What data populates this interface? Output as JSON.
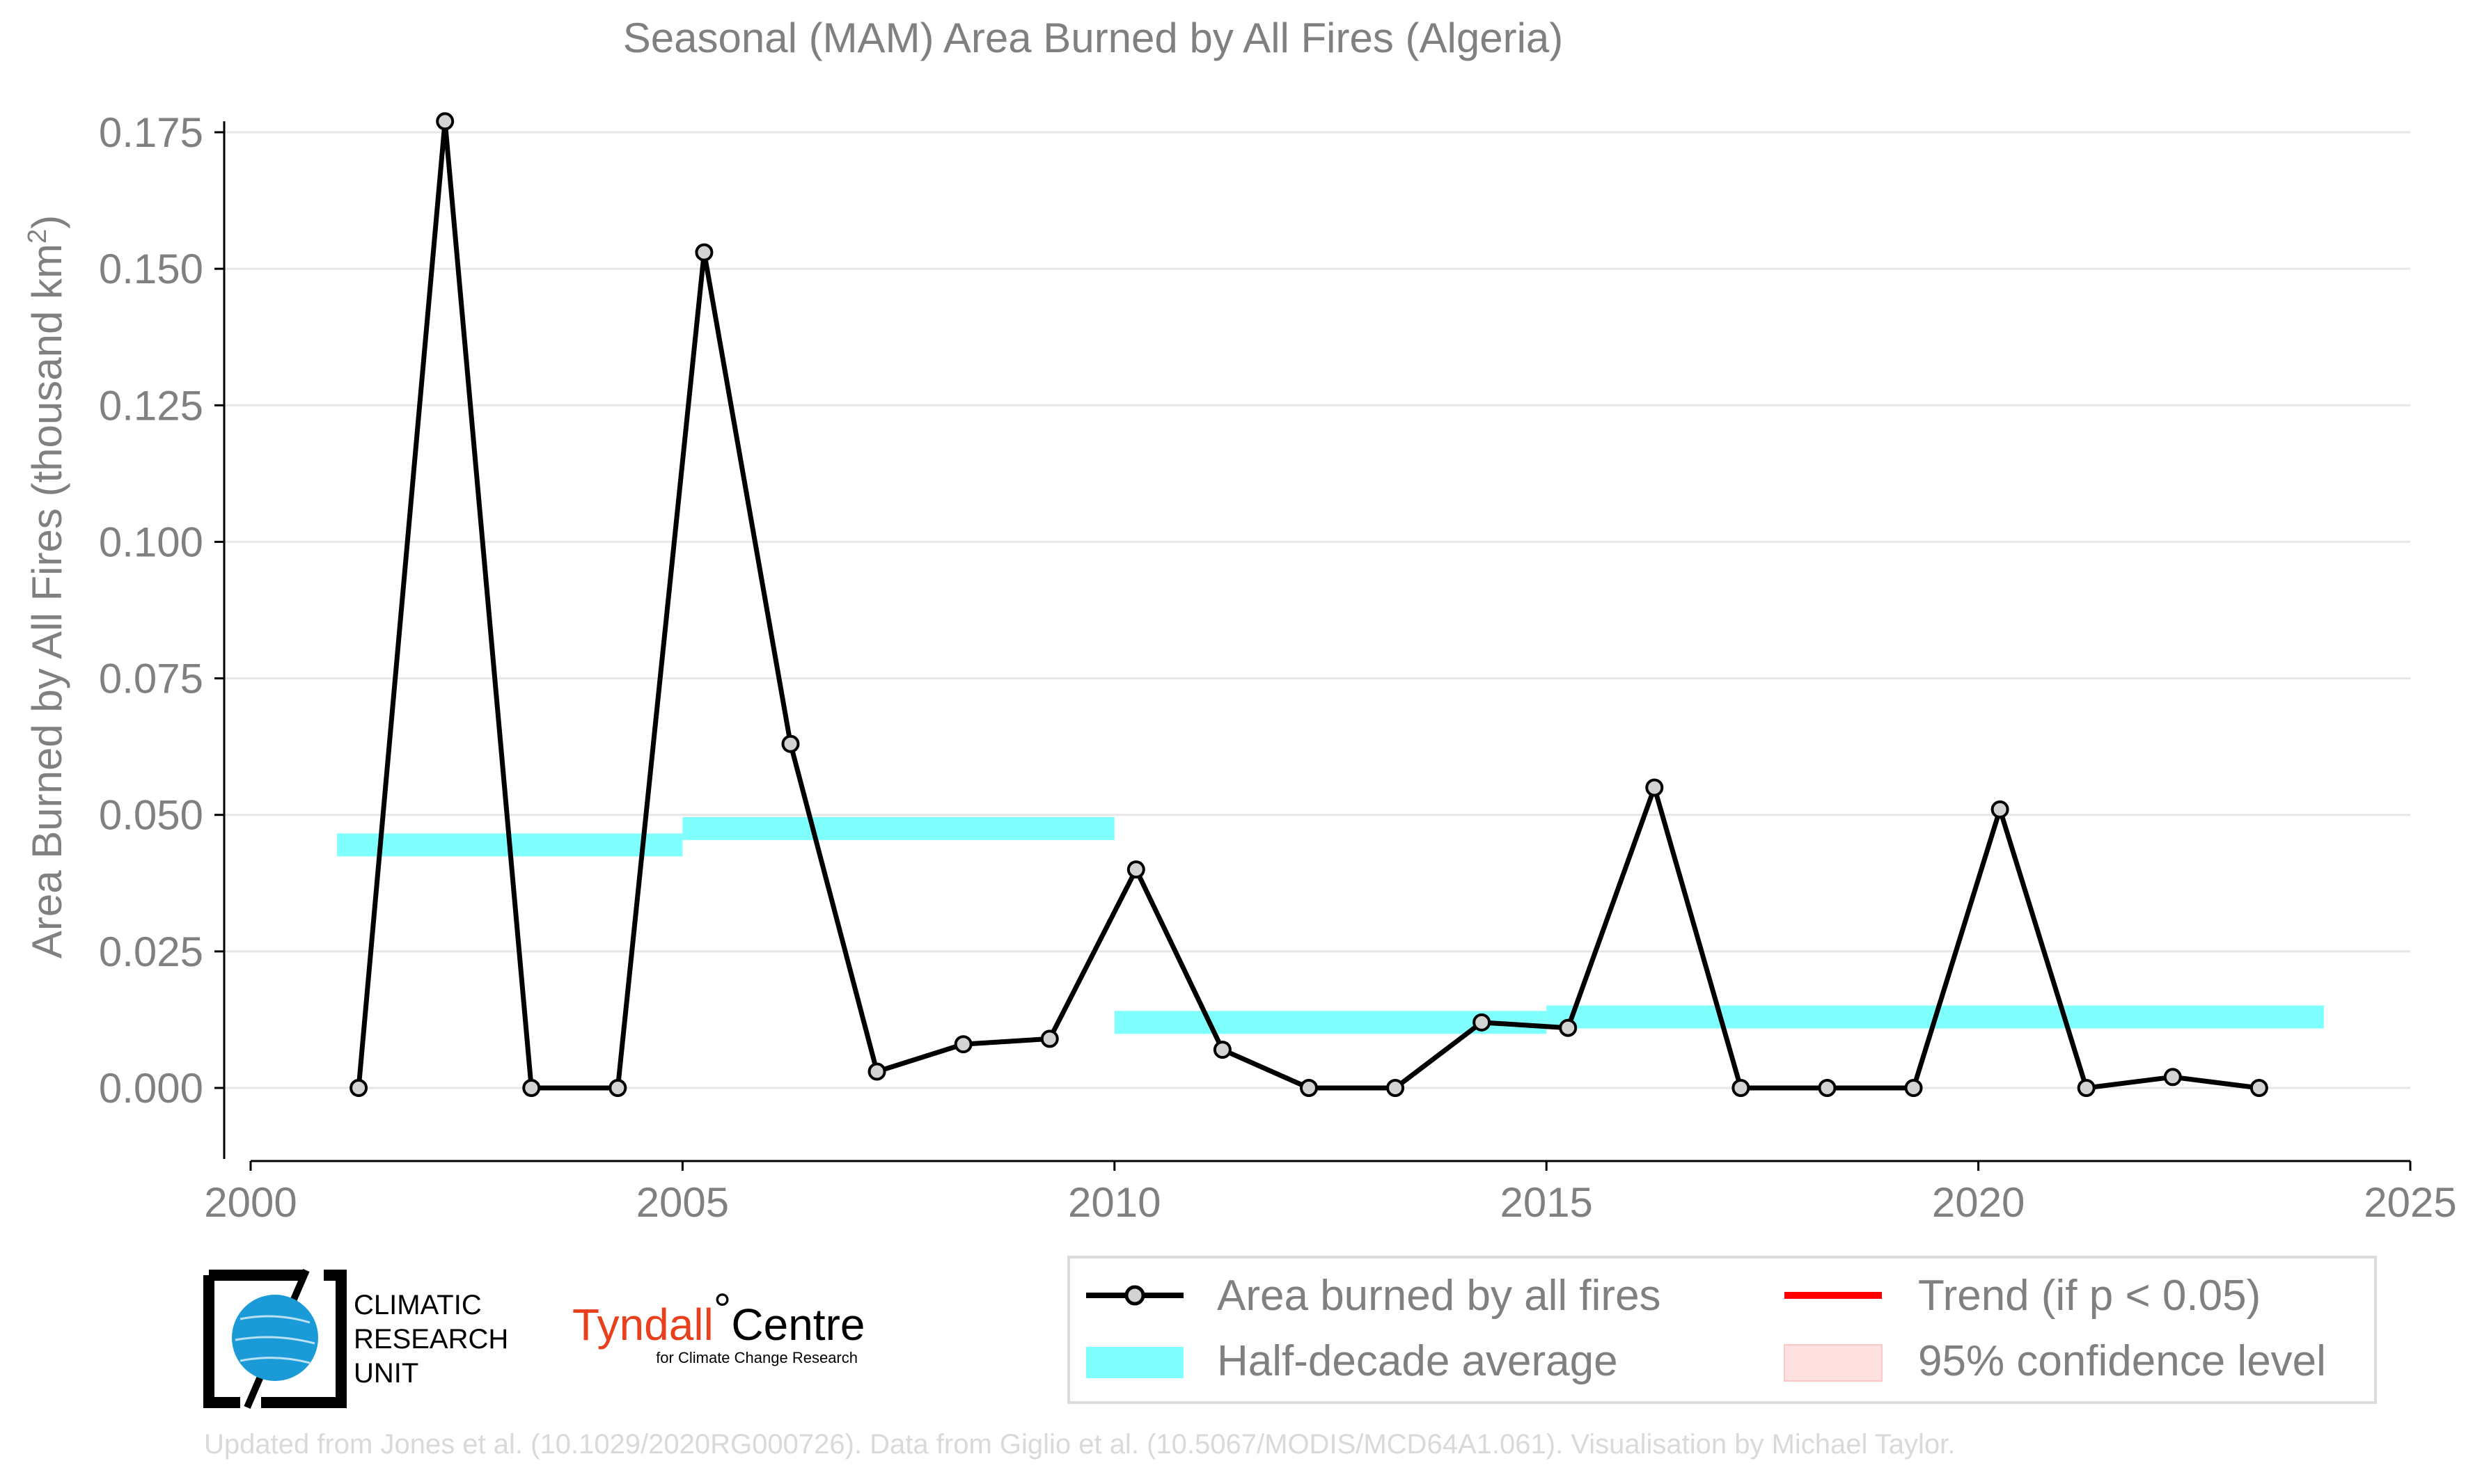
{
  "chart_data": {
    "type": "line",
    "title": "Seasonal (MAM) Area Burned by All Fires (Algeria)",
    "xlabel": "",
    "ylabel": "Area Burned by All Fires (thousand km",
    "ylabel_superscript": "2",
    "ylabel_close": ")",
    "xlim": [
      2000,
      2025
    ],
    "ylim": [
      -0.013,
      0.177
    ],
    "x_ticks": [
      2000,
      2005,
      2010,
      2015,
      2020,
      2025
    ],
    "x_tick_labels": [
      "2000",
      "2005",
      "2010",
      "2015",
      "2020",
      "2025"
    ],
    "y_ticks": [
      0.0,
      0.025,
      0.05,
      0.075,
      0.1,
      0.125,
      0.15,
      0.175
    ],
    "y_tick_labels": [
      "0.000",
      "0.025",
      "0.050",
      "0.075",
      "0.100",
      "0.125",
      "0.150",
      "0.175"
    ],
    "grid": "horizontal",
    "legend_position": "bottom-right",
    "series": [
      {
        "name": "Area burned by all fires",
        "kind": "line-markers",
        "color": "#000000",
        "marker_fill": "#d3d3d3",
        "x": [
          2001.25,
          2002.25,
          2003.25,
          2004.25,
          2005.25,
          2006.25,
          2007.25,
          2008.25,
          2009.25,
          2010.25,
          2011.25,
          2012.25,
          2013.25,
          2014.25,
          2015.25,
          2016.25,
          2017.25,
          2018.25,
          2019.25,
          2020.25,
          2021.25,
          2022.25,
          2023.25
        ],
        "y": [
          0.0,
          0.177,
          0.0,
          0.0,
          0.153,
          0.063,
          0.003,
          0.008,
          0.009,
          0.04,
          0.007,
          0.0,
          0.0,
          0.012,
          0.011,
          0.055,
          0.0,
          0.0,
          0.0,
          0.051,
          0.0,
          0.002,
          0.0
        ]
      },
      {
        "name": "Half-decade average",
        "kind": "bands",
        "color": "#80ffff",
        "segments": [
          {
            "x_start": 2001,
            "x_end": 2005,
            "y": 0.0445
          },
          {
            "x_start": 2005,
            "x_end": 2010,
            "y": 0.0475
          },
          {
            "x_start": 2010,
            "x_end": 2015,
            "y": 0.012
          },
          {
            "x_start": 2015,
            "x_end": 2024,
            "y": 0.013
          }
        ]
      },
      {
        "name": "Trend (if p < 0.05)",
        "kind": "legend-only",
        "color": "#ff0000"
      },
      {
        "name": "95% confidence level",
        "kind": "legend-only",
        "color": "#ffe0e0"
      }
    ]
  },
  "logos": {
    "cru_lines": [
      "CLIMATIC",
      "RESEARCH",
      "UNIT"
    ],
    "tyndall_name": "Tyndall",
    "tyndall_degree": "°",
    "tyndall_centre": "Centre",
    "tyndall_sub": "for Climate Change Research",
    "cru_globe_color": "#1a9bd7",
    "tyndall_color": "#e8401c"
  },
  "credit": "Updated from Jones et al. (10.1029/2020RG000726). Data from Giglio et al. (10.5067/MODIS/MCD64A1.061). Visualisation by Michael Taylor."
}
